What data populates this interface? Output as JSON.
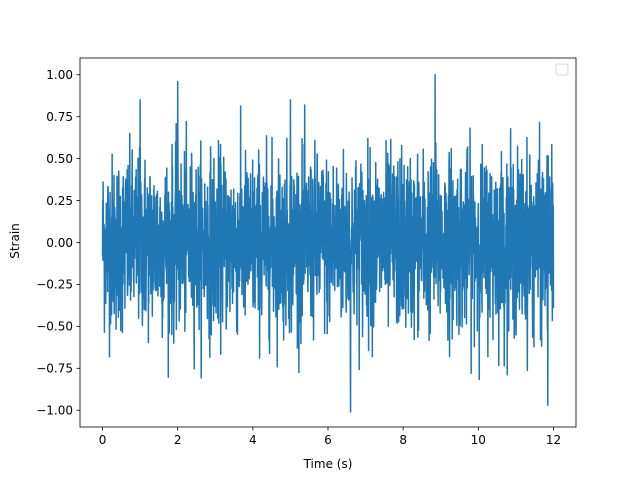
{
  "chart_data": {
    "type": "line",
    "title": "",
    "xlabel": "Time (s)",
    "ylabel": "Strain",
    "xlim": [
      -0.6,
      12.6
    ],
    "ylim": [
      -1.1,
      1.1
    ],
    "x_ticks": [
      0,
      2,
      4,
      6,
      8,
      10,
      12
    ],
    "x_tick_labels": [
      "0",
      "2",
      "4",
      "6",
      "8",
      "10",
      "12"
    ],
    "y_ticks": [
      -1.0,
      -0.75,
      -0.5,
      -0.25,
      0.0,
      0.25,
      0.5,
      0.75,
      1.0
    ],
    "y_tick_labels": [
      "−1.00",
      "−0.75",
      "−0.50",
      "−0.25",
      "0.00",
      "0.25",
      "0.50",
      "0.75",
      "1.00"
    ],
    "grid": false,
    "legend": {
      "placement": "upper-right",
      "entries": []
    },
    "series": [
      {
        "color": "#1f77b4",
        "x_range": [
          0,
          12
        ],
        "approx_max": 1.0,
        "approx_min": -1.01,
        "typical_envelope": [
          -0.6,
          0.6
        ],
        "peaks": [
          {
            "x": 1.0,
            "y": 0.85
          },
          {
            "x": 2.0,
            "y": 0.96
          },
          {
            "x": 5.0,
            "y": 0.85
          },
          {
            "x": 6.6,
            "y": -1.01
          },
          {
            "x": 8.85,
            "y": 1.0
          },
          {
            "x": 11.85,
            "y": -0.97
          }
        ]
      }
    ]
  }
}
